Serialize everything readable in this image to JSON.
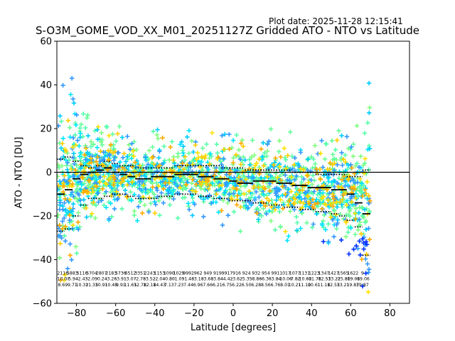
{
  "header": {
    "plot_date": "Plot date: 2025-11-28 12:15:41"
  },
  "chart_data": {
    "type": "scatter",
    "title": "S-O3M_GOME_VOD_XX_M01_20251127Z Gridded ATO - NTO vs Latitude",
    "xlabel": "Latitude [degrees]",
    "ylabel": "ATO - NTO [DU]",
    "xlim": [
      -90,
      90
    ],
    "ylim": [
      -60,
      60
    ],
    "xticks": [
      -80,
      -60,
      -40,
      -20,
      0,
      20,
      40,
      60,
      80
    ],
    "yticks": [
      -60,
      -40,
      -20,
      0,
      20,
      40,
      60
    ],
    "zero_line": 0,
    "marker": "plus",
    "point_colors": [
      "#7fff7f",
      "#66ff99",
      "#55ffaa",
      "#00e5ff",
      "#00ccff",
      "#3399ff",
      "#ffe000",
      "#ffcc00",
      "#ffaa00",
      "#0033ff"
    ],
    "lat_bins": [
      -88,
      -84,
      -80,
      -76,
      -72,
      -68,
      -64,
      -60,
      -56,
      -52,
      -48,
      -44,
      -40,
      -36,
      -32,
      -28,
      -24,
      -20,
      -16,
      -12,
      -8,
      -4,
      0,
      4,
      8,
      12,
      16,
      20,
      24,
      28,
      32,
      36,
      40,
      44,
      48,
      52,
      56,
      60,
      64,
      68
    ],
    "bin_median": [
      -10,
      -8,
      -3,
      -1,
      0,
      1,
      2,
      0,
      -1,
      -2,
      -3,
      -3,
      -2,
      -2,
      -2,
      -1,
      -1,
      -1,
      -2,
      -2,
      -3,
      -3,
      -4,
      -5,
      -5,
      -4,
      -4,
      -4,
      -5,
      -5,
      -6,
      -6,
      -7,
      -7,
      -7,
      -8,
      -8,
      -10,
      -14,
      -19
    ],
    "bin_plus1": [
      6,
      7,
      5,
      3,
      2,
      3,
      5,
      4,
      3,
      3,
      2,
      2,
      2,
      2,
      2,
      3,
      3,
      3,
      3,
      3,
      3,
      2,
      2,
      2,
      1,
      1,
      1,
      1,
      1,
      1,
      0,
      0,
      0,
      -1,
      -1,
      -1,
      -1,
      -2,
      -2,
      1
    ],
    "bin_minus1": [
      -27,
      -26,
      -20,
      -15,
      -12,
      -12,
      -11,
      -10,
      -10,
      -11,
      -12,
      -12,
      -12,
      -11,
      -11,
      -10,
      -10,
      -10,
      -11,
      -11,
      -12,
      -12,
      -13,
      -13,
      -13,
      -14,
      -14,
      -15,
      -15,
      -16,
      -16,
      -17,
      -17,
      -18,
      -18,
      -19,
      -20,
      -22,
      -25,
      -38
    ],
    "count_labels": [
      "2116",
      "5883",
      "5116",
      "5704",
      "2807",
      "2183",
      "5736",
      "6512",
      "3351",
      "2243",
      "1153",
      "1090",
      "1029",
      "9992",
      "962",
      "949",
      "919",
      "9917",
      "916",
      "924",
      "932",
      "954",
      "991",
      "1017",
      "1077",
      "1131",
      "1223",
      "1347",
      "1427",
      "1565",
      "1622",
      "9"
    ],
    "mean_labels": [
      "-10.07",
      "-5.94",
      "-2.43",
      "-2.09",
      "-0.24",
      "-3.26",
      "-3.91",
      "-3.07",
      "-2.78",
      "-3.52",
      "-2.04",
      "-0.80",
      "-1.09",
      "-1.48",
      "-3.18",
      "-3.68",
      "-3.84",
      "-4.42",
      "-3.62",
      "-5.35",
      "-8.86",
      "-6.36",
      "-3.84",
      "-10.06",
      "-7.82",
      "-10.60",
      "-11.78",
      "-12.53",
      "-13.22",
      "-15.80",
      "-19.06",
      "-19.06"
    ],
    "std_labels": [
      "8.69",
      "9.71",
      "10.32",
      "11.33",
      "10.91",
      "10.48",
      "9.91",
      "11.65",
      "12.78",
      "12.18",
      "14.43",
      "7.13",
      "7.23",
      "7.44",
      "6.96",
      "7.66",
      "6.21",
      "6.75",
      "6.22",
      "6.50",
      "6.28",
      "8.56",
      "6.76",
      "8.01",
      "10.21",
      "11.10",
      "10.61",
      "11.18",
      "12.53",
      "13.21",
      "19.87",
      "19.87"
    ]
  }
}
